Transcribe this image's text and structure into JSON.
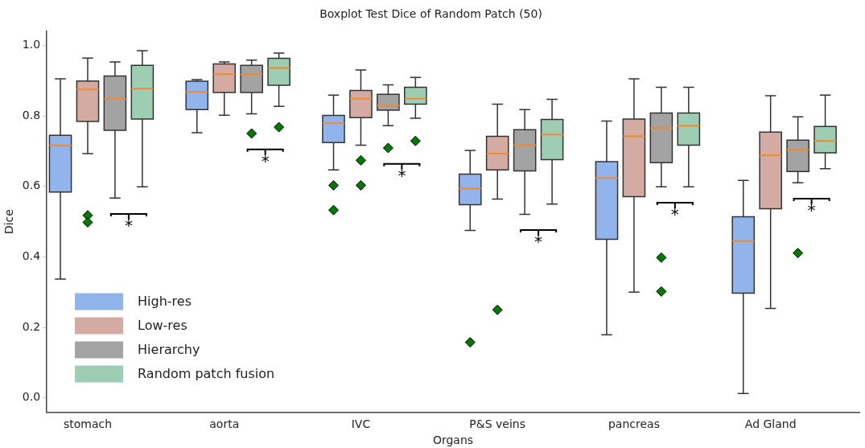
{
  "chart_data": {
    "type": "box",
    "title": "Boxplot Test Dice of Random Patch (50)",
    "xlabel": "Organs",
    "ylabel": "Dice",
    "categories": [
      "stomach",
      "aorta",
      "IVC",
      "P&S veins",
      "pancreas",
      "Ad Gland"
    ],
    "ylim": [
      -0.04,
      1.04
    ],
    "yticks": [
      {
        "value": 0,
        "label": "0.0"
      },
      {
        "value": 0.2,
        "label": "0.2"
      },
      {
        "value": 0.4,
        "label": "0.4"
      },
      {
        "value": 0.6,
        "label": "0.6"
      },
      {
        "value": 0.8,
        "label": "0.8"
      },
      {
        "value": 1,
        "label": "1.0"
      }
    ],
    "legend": "bottom left",
    "grid": false,
    "series": [
      {
        "name": "High-res",
        "color": "#92b4ec",
        "boxes": [
          {
            "low": 0.337,
            "q1": 0.584,
            "median": 0.716,
            "q3": 0.745,
            "high": 0.905
          },
          {
            "low": 0.752,
            "q1": 0.818,
            "median": 0.868,
            "q3": 0.898,
            "high": 0.903
          },
          {
            "low": 0.647,
            "q1": 0.724,
            "median": 0.779,
            "q3": 0.801,
            "high": 0.859,
            "outliers": [
              0.603,
              0.533
            ]
          },
          {
            "low": 0.475,
            "q1": 0.548,
            "median": 0.594,
            "q3": 0.635,
            "high": 0.702,
            "outliers": [
              0.158
            ]
          },
          {
            "low": 0.179,
            "q1": 0.45,
            "median": 0.624,
            "q3": 0.67,
            "high": 0.785
          },
          {
            "low": 0.013,
            "q1": 0.297,
            "median": 0.445,
            "q3": 0.514,
            "high": 0.617
          }
        ]
      },
      {
        "name": "Low-res",
        "color": "#d4aba2",
        "boxes": [
          {
            "low": 0.693,
            "q1": 0.784,
            "median": 0.875,
            "q3": 0.899,
            "high": 0.964,
            "outliers": [
              0.518,
              0.498
            ]
          },
          {
            "low": 0.802,
            "q1": 0.866,
            "median": 0.918,
            "q3": 0.947,
            "high": 0.953
          },
          {
            "low": 0.717,
            "q1": 0.795,
            "median": 0.849,
            "q3": 0.872,
            "high": 0.93,
            "outliers": [
              0.674,
              0.603
            ]
          },
          {
            "low": 0.564,
            "q1": 0.647,
            "median": 0.693,
            "q3": 0.742,
            "high": 0.833,
            "outliers": [
              0.25
            ]
          },
          {
            "low": 0.3,
            "q1": 0.571,
            "median": 0.742,
            "q3": 0.791,
            "high": 0.905
          },
          {
            "low": 0.254,
            "q1": 0.537,
            "median": 0.688,
            "q3": 0.754,
            "high": 0.857
          }
        ]
      },
      {
        "name": "Hierarchy",
        "color": "#a3a3a3",
        "boxes": [
          {
            "low": 0.567,
            "q1": 0.759,
            "median": 0.848,
            "q3": 0.913,
            "high": 0.953
          },
          {
            "low": 0.806,
            "q1": 0.866,
            "median": 0.917,
            "q3": 0.943,
            "high": 0.958,
            "outliers": [
              0.75
            ]
          },
          {
            "low": 0.772,
            "q1": 0.816,
            "median": 0.829,
            "q3": 0.861,
            "high": 0.888,
            "outliers": [
              0.709
            ]
          },
          {
            "low": 0.521,
            "q1": 0.644,
            "median": 0.717,
            "q3": 0.761,
            "high": 0.818
          },
          {
            "low": 0.599,
            "q1": 0.667,
            "median": 0.765,
            "q3": 0.808,
            "high": 0.881,
            "outliers": [
              0.398,
              0.302
            ]
          },
          {
            "low": 0.61,
            "q1": 0.642,
            "median": 0.704,
            "q3": 0.731,
            "high": 0.797,
            "outliers": [
              0.411
            ]
          }
        ]
      },
      {
        "name": "Random patch fusion",
        "color": "#9dcdb3",
        "boxes": [
          {
            "low": 0.599,
            "q1": 0.791,
            "median": 0.877,
            "q3": 0.943,
            "high": 0.985
          },
          {
            "low": 0.827,
            "q1": 0.887,
            "median": 0.936,
            "q3": 0.963,
            "high": 0.978,
            "outliers": [
              0.768
            ]
          },
          {
            "low": 0.793,
            "q1": 0.833,
            "median": 0.849,
            "q3": 0.881,
            "high": 0.909,
            "outliers": [
              0.729
            ]
          },
          {
            "low": 0.55,
            "q1": 0.676,
            "median": 0.747,
            "q3": 0.79,
            "high": 0.847
          },
          {
            "low": 0.599,
            "q1": 0.717,
            "median": 0.772,
            "q3": 0.808,
            "high": 0.881
          },
          {
            "low": 0.65,
            "q1": 0.695,
            "median": 0.729,
            "q3": 0.77,
            "high": 0.859
          }
        ]
      }
    ],
    "annotations": [
      "*",
      "*",
      "*",
      "*",
      "*",
      "*"
    ]
  }
}
